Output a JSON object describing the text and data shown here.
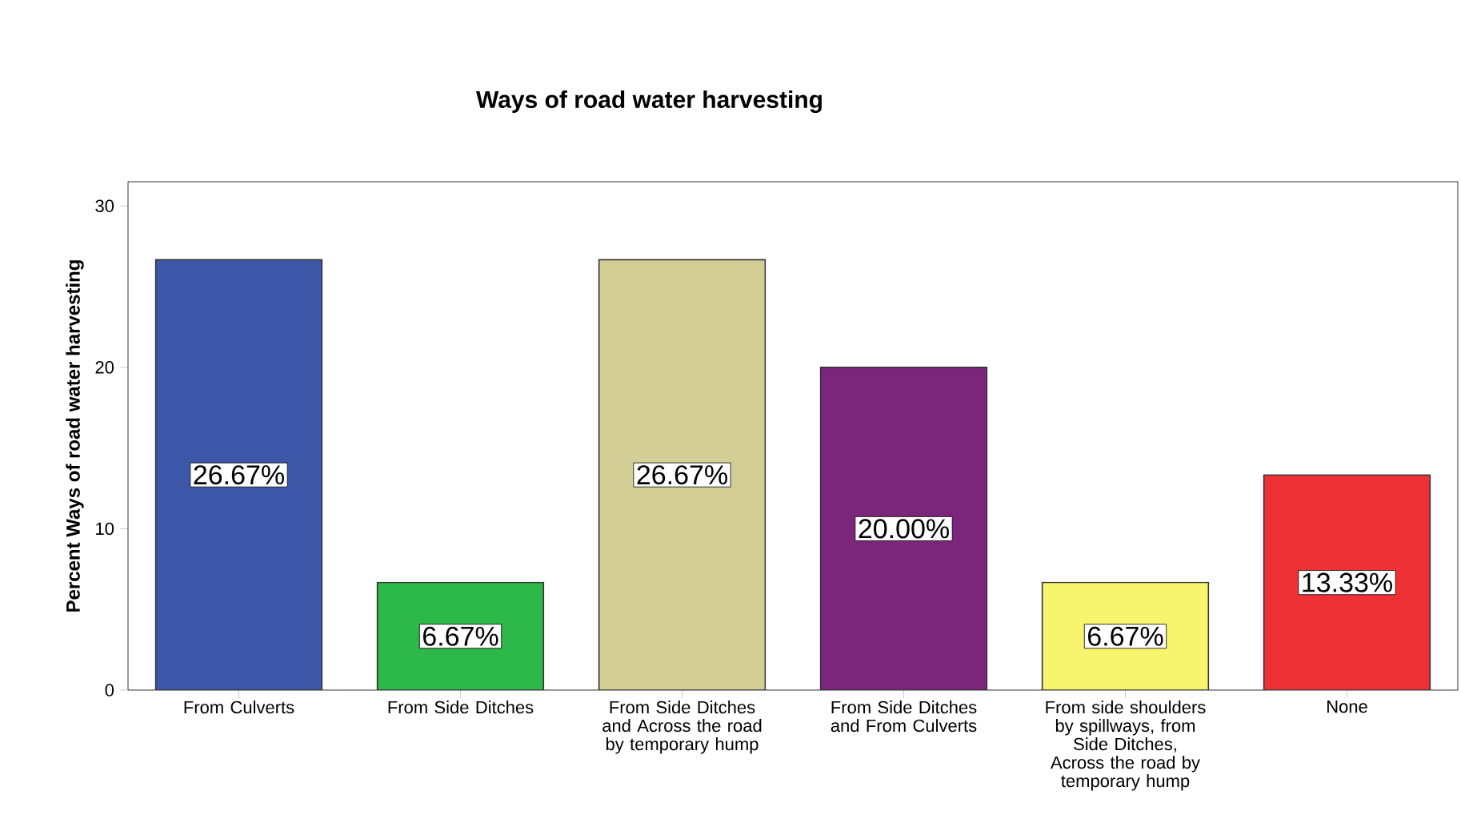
{
  "chart_data": {
    "type": "bar",
    "title": "Ways of road water harvesting",
    "ylabel": "Percent Ways of road water harvesting",
    "categories": [
      "From Culverts",
      "From Side Ditches",
      "From Side Ditches and Across the road by temporary hump",
      "From Side Ditches and From Culverts",
      "From side shoulders by spillways, from Side Ditches, Across the road by temporary hump",
      "None"
    ],
    "values": [
      26.67,
      6.67,
      26.67,
      20.0,
      6.67,
      13.33
    ],
    "value_labels": [
      "26.67%",
      "6.67%",
      "26.67%",
      "20.00%",
      "6.67%",
      "13.33%"
    ],
    "colors": [
      "#3d57a8",
      "#2db84a",
      "#d3cd96",
      "#7b267b",
      "#f7f46e",
      "#ee3135"
    ],
    "ylim": [
      0,
      31.5
    ],
    "yticks": [
      0,
      10,
      20,
      30
    ]
  }
}
